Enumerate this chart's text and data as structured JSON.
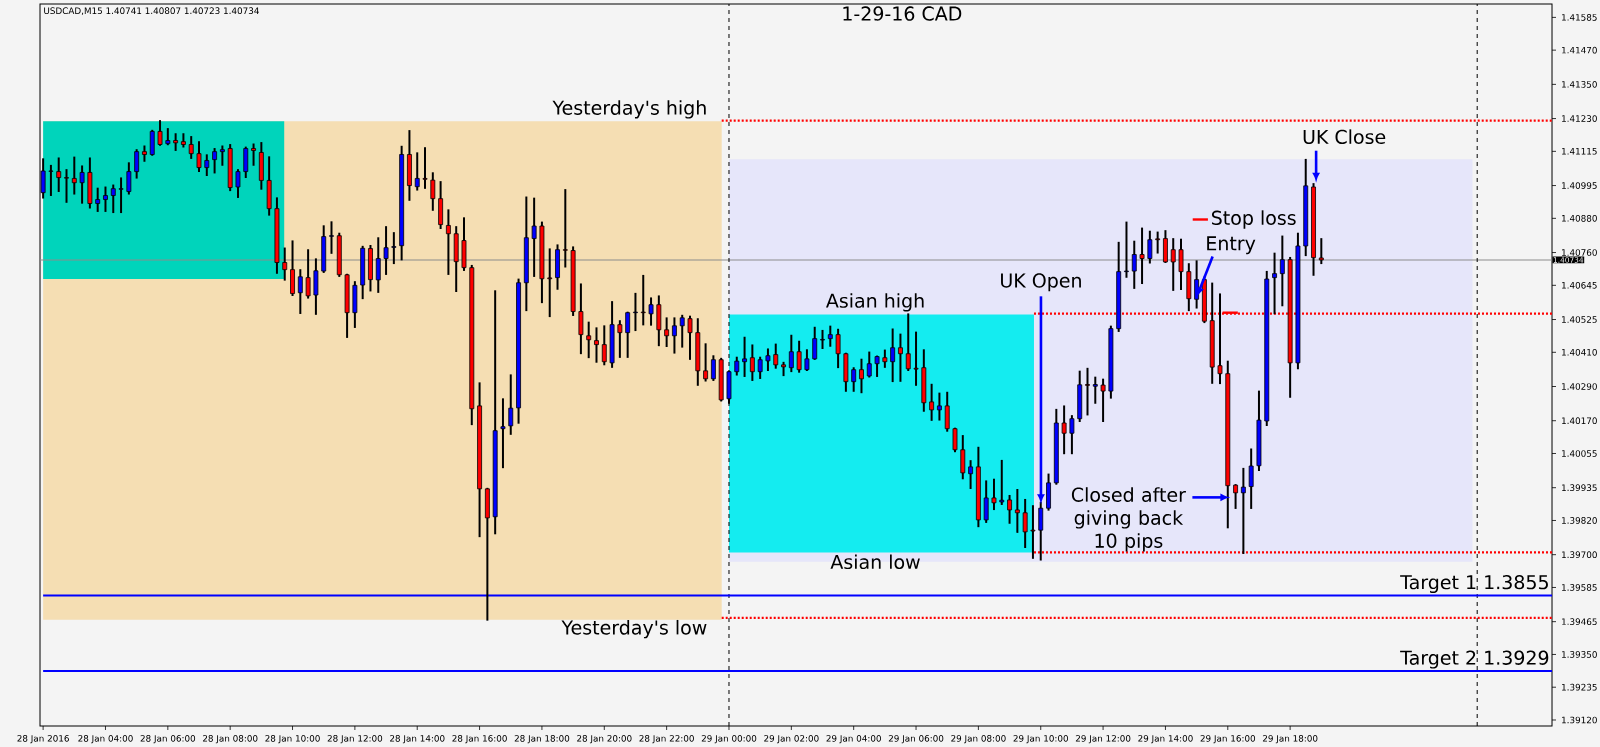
{
  "chart_data": {
    "type": "candlestick",
    "title": "1-29-16  CAD",
    "subtitle": "USDCAD,M15 1.40741 1.40807 1.40723 1.40734",
    "series": [
      {
        "type": "area",
        "x": [
          "2016-01-28T02:00",
          "2016-01-28T23:46"
        ],
        "values": [
          null,
          null
        ],
        "upper": [
          1.41221,
          1.41221
        ],
        "lower": [
          1.39472,
          1.39472
        ],
        "color": "#f5deb3"
      },
      {
        "type": "area",
        "x": [
          "2016-01-28T02:00",
          "2016-01-28T09:44"
        ],
        "values": [
          null,
          null
        ],
        "upper": [
          1.41221,
          1.41221
        ],
        "lower": [
          1.40667,
          1.40667
        ],
        "color": "#00d4bb"
      },
      {
        "type": "area",
        "x": [
          "2016-01-29T00:00",
          "2016-01-29T23:51"
        ],
        "values": [
          null,
          null
        ],
        "upper": [
          1.41087,
          1.41087
        ],
        "lower": [
          1.39675,
          1.39675
        ],
        "color": "#e6e6fa"
      },
      {
        "type": "area",
        "x": [
          "2016-01-29T00:00",
          "2016-01-29T09:47"
        ],
        "values": [
          null,
          null
        ],
        "upper": [
          1.40543,
          1.40543
        ],
        "lower": [
          1.39708,
          1.39708
        ],
        "color": "#14ecf0"
      },
      {
        "type": "line",
        "x": [
          "2016-01-28T23:46",
          "2016-01-30T02:24"
        ],
        "values": [
          1.41223,
          1.41223
        ],
        "color": "#ff0000",
        "line_style": "dotted"
      },
      {
        "type": "line",
        "x": [
          "2016-01-28T23:46",
          "2016-01-30T02:24"
        ],
        "values": [
          1.39478,
          1.39478
        ],
        "color": "#ff0000",
        "line_style": "dotted"
      },
      {
        "type": "line",
        "x": [
          "2016-01-29T09:47",
          "2016-01-30T02:24"
        ],
        "values": [
          1.40546,
          1.40546
        ],
        "color": "#ff0000",
        "line_style": "dotted"
      },
      {
        "type": "line",
        "x": [
          "2016-01-29T09:47",
          "2016-01-30T02:24"
        ],
        "values": [
          1.39708,
          1.39708
        ],
        "color": "#ff0000",
        "line_style": "dotted"
      },
      {
        "type": "line",
        "name": "Target 1  1.3855",
        "x": [
          "2016-01-28T02:00",
          "2016-01-30T02:24"
        ],
        "values": [
          1.39557,
          1.39557
        ],
        "color": "#0000ff",
        "line_style": "solid"
      },
      {
        "type": "line",
        "name": "Target 2  1.3929",
        "x": [
          "2016-01-28T02:00",
          "2016-01-30T02:24"
        ],
        "values": [
          1.39292,
          1.39292
        ],
        "color": "#0000ff",
        "line_style": "solid"
      },
      {
        "x": [
          "2016-01-28T02:00",
          "2016-01-28T02:15",
          "2016-01-28T02:30",
          "2016-01-28T02:45",
          "2016-01-28T03:00",
          "2016-01-28T03:15",
          "2016-01-28T03:30",
          "2016-01-28T03:45",
          "2016-01-28T04:00",
          "2016-01-28T04:15",
          "2016-01-28T04:30",
          "2016-01-28T04:45",
          "2016-01-28T05:00",
          "2016-01-28T05:15",
          "2016-01-28T05:30",
          "2016-01-28T05:45",
          "2016-01-28T06:00",
          "2016-01-28T06:15",
          "2016-01-28T06:30",
          "2016-01-28T06:45",
          "2016-01-28T07:00",
          "2016-01-28T07:15",
          "2016-01-28T07:30",
          "2016-01-28T07:45",
          "2016-01-28T08:00",
          "2016-01-28T08:15",
          "2016-01-28T08:30",
          "2016-01-28T08:45",
          "2016-01-28T09:00",
          "2016-01-28T09:15",
          "2016-01-28T09:30",
          "2016-01-28T09:45",
          "2016-01-28T10:00",
          "2016-01-28T10:15",
          "2016-01-28T10:30",
          "2016-01-28T10:45",
          "2016-01-28T11:00",
          "2016-01-28T11:15",
          "2016-01-28T11:30",
          "2016-01-28T11:45",
          "2016-01-28T12:00",
          "2016-01-28T12:15",
          "2016-01-28T12:30",
          "2016-01-28T12:45",
          "2016-01-28T13:00",
          "2016-01-28T13:15",
          "2016-01-28T13:30",
          "2016-01-28T13:45",
          "2016-01-28T14:00",
          "2016-01-28T14:15",
          "2016-01-28T14:30",
          "2016-01-28T14:45",
          "2016-01-28T15:00",
          "2016-01-28T15:15",
          "2016-01-28T15:30",
          "2016-01-28T15:45",
          "2016-01-28T16:00",
          "2016-01-28T16:15",
          "2016-01-28T16:30",
          "2016-01-28T16:45",
          "2016-01-28T17:00",
          "2016-01-28T17:15",
          "2016-01-28T17:30",
          "2016-01-28T17:45",
          "2016-01-28T18:00",
          "2016-01-28T18:15",
          "2016-01-28T18:30",
          "2016-01-28T18:45",
          "2016-01-28T19:00",
          "2016-01-28T19:15",
          "2016-01-28T19:30",
          "2016-01-28T19:45",
          "2016-01-28T20:00",
          "2016-01-28T20:15",
          "2016-01-28T20:30",
          "2016-01-28T20:45",
          "2016-01-28T21:00",
          "2016-01-28T21:15",
          "2016-01-28T21:30",
          "2016-01-28T21:45",
          "2016-01-28T22:00",
          "2016-01-28T22:15",
          "2016-01-28T22:30",
          "2016-01-28T22:45",
          "2016-01-28T23:00",
          "2016-01-28T23:15",
          "2016-01-28T23:30",
          "2016-01-28T23:45",
          "2016-01-29T00:00",
          "2016-01-29T00:15",
          "2016-01-29T00:30",
          "2016-01-29T00:45",
          "2016-01-29T01:00",
          "2016-01-29T01:15",
          "2016-01-29T01:30",
          "2016-01-29T01:45",
          "2016-01-29T02:00",
          "2016-01-29T02:15",
          "2016-01-29T02:30",
          "2016-01-29T02:45",
          "2016-01-29T03:00",
          "2016-01-29T03:15",
          "2016-01-29T03:30",
          "2016-01-29T03:45",
          "2016-01-29T04:00",
          "2016-01-29T04:15",
          "2016-01-29T04:30",
          "2016-01-29T04:45",
          "2016-01-29T05:00",
          "2016-01-29T05:15",
          "2016-01-29T05:30",
          "2016-01-29T05:45",
          "2016-01-29T06:00",
          "2016-01-29T06:15",
          "2016-01-29T06:30",
          "2016-01-29T06:45",
          "2016-01-29T07:00",
          "2016-01-29T07:15",
          "2016-01-29T07:30",
          "2016-01-29T07:45",
          "2016-01-29T08:00",
          "2016-01-29T08:15",
          "2016-01-29T08:30",
          "2016-01-29T08:45",
          "2016-01-29T09:00",
          "2016-01-29T09:15",
          "2016-01-29T09:30",
          "2016-01-29T09:45",
          "2016-01-29T10:00",
          "2016-01-29T10:15",
          "2016-01-29T10:30",
          "2016-01-29T10:45",
          "2016-01-29T11:00",
          "2016-01-29T11:15",
          "2016-01-29T11:30",
          "2016-01-29T11:45",
          "2016-01-29T12:00",
          "2016-01-29T12:15",
          "2016-01-29T12:30",
          "2016-01-29T12:45",
          "2016-01-29T13:00",
          "2016-01-29T13:15",
          "2016-01-29T13:30",
          "2016-01-29T13:45",
          "2016-01-29T14:00",
          "2016-01-29T14:15",
          "2016-01-29T14:30",
          "2016-01-29T14:45",
          "2016-01-29T15:00",
          "2016-01-29T15:15",
          "2016-01-29T15:30",
          "2016-01-29T15:45",
          "2016-01-29T16:00",
          "2016-01-29T16:15",
          "2016-01-29T16:30",
          "2016-01-29T16:45",
          "2016-01-29T17:00",
          "2016-01-29T17:15",
          "2016-01-29T17:30",
          "2016-01-29T17:45",
          "2016-01-29T18:00",
          "2016-01-29T18:15",
          "2016-01-29T18:30",
          "2016-01-29T18:45",
          "2016-01-29T19:00"
        ],
        "ohlc": [
          [
            1.4097,
            1.41087,
            1.40953,
            1.41046
          ],
          [
            1.41045,
            1.41064,
            1.40962,
            1.41046
          ],
          [
            1.41044,
            1.4109,
            1.40976,
            1.41023
          ],
          [
            1.41023,
            1.41049,
            1.40938,
            1.41021
          ],
          [
            1.4102,
            1.41093,
            1.40967,
            1.41005
          ],
          [
            1.41005,
            1.41062,
            1.40935,
            1.41041
          ],
          [
            1.41041,
            1.4109,
            1.40918,
            1.40932
          ],
          [
            1.40932,
            1.40984,
            1.40906,
            1.40946
          ],
          [
            1.40946,
            1.40988,
            1.40906,
            1.4096
          ],
          [
            1.4096,
            1.40995,
            1.40902,
            1.40984
          ],
          [
            1.40982,
            1.4102,
            1.40902,
            1.40984
          ],
          [
            1.40974,
            1.41073,
            1.40967,
            1.41044
          ],
          [
            1.41044,
            1.41119,
            1.41023,
            1.41114
          ],
          [
            1.41114,
            1.41132,
            1.41082,
            1.41104
          ],
          [
            1.41104,
            1.41187,
            1.41103,
            1.41185
          ],
          [
            1.41185,
            1.41221,
            1.41138,
            1.41139
          ],
          [
            1.41142,
            1.41193,
            1.4114,
            1.41153
          ],
          [
            1.41153,
            1.41175,
            1.4112,
            1.41145
          ],
          [
            1.41149,
            1.41175,
            1.41132,
            1.41139
          ],
          [
            1.41139,
            1.41165,
            1.41092,
            1.41107
          ],
          [
            1.41107,
            1.41147,
            1.41046,
            1.41058
          ],
          [
            1.41058,
            1.41101,
            1.41032,
            1.41083
          ],
          [
            1.41086,
            1.41123,
            1.41041,
            1.41114
          ],
          [
            1.41114,
            1.41132,
            1.41068,
            1.41121
          ],
          [
            1.41125,
            1.41137,
            1.40979,
            1.40988
          ],
          [
            1.4099,
            1.41049,
            1.40955,
            1.41044
          ],
          [
            1.41044,
            1.41128,
            1.41025,
            1.41125
          ],
          [
            1.41125,
            1.41139,
            1.41068,
            1.41118
          ],
          [
            1.41111,
            1.41144,
            1.40984,
            1.41013
          ],
          [
            1.41013,
            1.41094,
            1.40893,
            1.40914
          ],
          [
            1.40914,
            1.4095,
            1.40689,
            1.40725
          ],
          [
            1.40725,
            1.40774,
            1.40665,
            1.407
          ],
          [
            1.407,
            1.40799,
            1.40611,
            1.40616
          ],
          [
            1.40619,
            1.40698,
            1.40548,
            1.40675
          ],
          [
            1.40672,
            1.40768,
            1.40602,
            1.40608
          ],
          [
            1.40611,
            1.40736,
            1.40545,
            1.40696
          ],
          [
            1.40695,
            1.40852,
            1.40692,
            1.40816
          ],
          [
            1.40817,
            1.40866,
            1.40759,
            1.40819
          ],
          [
            1.40819,
            1.40826,
            1.40678,
            1.40682
          ],
          [
            1.40682,
            1.40682,
            1.40464,
            1.40549
          ],
          [
            1.40549,
            1.40656,
            1.40499,
            1.40645
          ],
          [
            1.40646,
            1.4078,
            1.406,
            1.40775
          ],
          [
            1.40774,
            1.40783,
            1.40627,
            1.40665
          ],
          [
            1.40664,
            1.4081,
            1.40622,
            1.40739
          ],
          [
            1.40739,
            1.40849,
            1.40685,
            1.40777
          ],
          [
            1.40778,
            1.40828,
            1.40723,
            1.40781
          ],
          [
            1.40784,
            1.41131,
            1.40736,
            1.41104
          ],
          [
            1.41104,
            1.41186,
            1.40945,
            1.40995
          ],
          [
            1.40991,
            1.41108,
            1.40981,
            1.4102
          ],
          [
            1.4102,
            1.41126,
            1.40987,
            1.41017
          ],
          [
            1.41014,
            1.41038,
            1.4091,
            1.40949
          ],
          [
            1.40949,
            1.41007,
            1.40846,
            1.40858
          ],
          [
            1.40855,
            1.40908,
            1.40685,
            1.40826
          ],
          [
            1.40826,
            1.40849,
            1.40625,
            1.40728
          ],
          [
            1.40802,
            1.4088,
            1.40699,
            1.40707
          ],
          [
            1.40707,
            1.40713,
            1.40158,
            1.40212
          ],
          [
            1.40222,
            1.40301,
            1.39765,
            1.39931
          ],
          [
            1.39931,
            1.39931,
            1.39472,
            1.39829
          ],
          [
            1.39833,
            1.40624,
            1.39775,
            1.40135
          ],
          [
            1.40142,
            1.40245,
            1.40007,
            1.40149
          ],
          [
            1.40152,
            1.40329,
            1.40124,
            1.40214
          ],
          [
            1.40215,
            1.40665,
            1.40163,
            1.40654
          ],
          [
            1.40654,
            1.40953,
            1.40558,
            1.40812
          ],
          [
            1.40809,
            1.40949,
            1.40678,
            1.40853
          ],
          [
            1.40853,
            1.40865,
            1.40586,
            1.40668
          ],
          [
            1.40671,
            1.40771,
            1.40537,
            1.40668
          ],
          [
            1.40672,
            1.40785,
            1.40633,
            1.4077
          ],
          [
            1.4077,
            1.40979,
            1.40711,
            1.40768
          ],
          [
            1.40767,
            1.40778,
            1.40541,
            1.40553
          ],
          [
            1.40553,
            1.40648,
            1.40407,
            1.40472
          ],
          [
            1.40468,
            1.40514,
            1.40393,
            1.40454
          ],
          [
            1.40451,
            1.40494,
            1.40377,
            1.40437
          ],
          [
            1.40437,
            1.40501,
            1.40368,
            1.40377
          ],
          [
            1.40373,
            1.40586,
            1.40359,
            1.40507
          ],
          [
            1.40507,
            1.40519,
            1.40394,
            1.40479
          ],
          [
            1.40479,
            1.40549,
            1.40394,
            1.40549
          ],
          [
            1.40549,
            1.40615,
            1.40488,
            1.40551
          ],
          [
            1.40551,
            1.40678,
            1.40508,
            1.40549
          ],
          [
            1.40545,
            1.40599,
            1.40507,
            1.40577
          ],
          [
            1.40577,
            1.40606,
            1.40435,
            1.40489
          ],
          [
            1.40489,
            1.40529,
            1.40432,
            1.40468
          ],
          [
            1.40468,
            1.40529,
            1.40409,
            1.40503
          ],
          [
            1.40503,
            1.40538,
            1.4043,
            1.40531
          ],
          [
            1.40528,
            1.40535,
            1.40387,
            1.40479
          ],
          [
            1.40479,
            1.40526,
            1.40296,
            1.40345
          ],
          [
            1.40345,
            1.40438,
            1.40311,
            1.40317
          ],
          [
            1.40317,
            1.40396,
            1.40313,
            1.40384
          ],
          [
            1.40384,
            1.40387,
            1.40241,
            1.40243
          ],
          [
            1.40247,
            1.40342,
            1.40233,
            1.40342
          ],
          [
            1.40342,
            1.40391,
            1.40332,
            1.40379
          ],
          [
            1.40377,
            1.40461,
            1.40327,
            1.40387
          ],
          [
            1.40391,
            1.40434,
            1.40313,
            1.40342
          ],
          [
            1.40342,
            1.40391,
            1.4032,
            1.40384
          ],
          [
            1.4038,
            1.4042,
            1.40348,
            1.40398
          ],
          [
            1.40402,
            1.40437,
            1.40356,
            1.40366
          ],
          [
            1.40366,
            1.40373,
            1.4033,
            1.40359
          ],
          [
            1.40356,
            1.40468,
            1.40344,
            1.40412
          ],
          [
            1.40412,
            1.40447,
            1.40342,
            1.40349
          ],
          [
            1.40349,
            1.40417,
            1.40348,
            1.40387
          ],
          [
            1.40387,
            1.40496,
            1.40387,
            1.40458
          ],
          [
            1.40453,
            1.40485,
            1.40425,
            1.40455
          ],
          [
            1.40458,
            1.405,
            1.40433,
            1.40472
          ],
          [
            1.40472,
            1.40489,
            1.40358,
            1.40405
          ],
          [
            1.40405,
            1.40405,
            1.40275,
            1.40307
          ],
          [
            1.40307,
            1.40354,
            1.40275,
            1.40349
          ],
          [
            1.40349,
            1.40384,
            1.4027,
            1.40317
          ],
          [
            1.40327,
            1.40409,
            1.40325,
            1.4037
          ],
          [
            1.4037,
            1.40395,
            1.40327,
            1.40395
          ],
          [
            1.40391,
            1.40416,
            1.40359,
            1.40377
          ],
          [
            1.40377,
            1.4049,
            1.40309,
            1.40426
          ],
          [
            1.40426,
            1.40472,
            1.4031,
            1.40405
          ],
          [
            1.40405,
            1.40543,
            1.40348,
            1.40352
          ],
          [
            1.40354,
            1.40479,
            1.40296,
            1.40351
          ],
          [
            1.40356,
            1.40417,
            1.40205,
            1.40233
          ],
          [
            1.40236,
            1.40296,
            1.40173,
            1.40208
          ],
          [
            1.40208,
            1.40265,
            1.40174,
            1.40222
          ],
          [
            1.40222,
            1.40268,
            1.40135,
            1.40142
          ],
          [
            1.40142,
            1.40142,
            1.40063,
            1.40068
          ],
          [
            1.40068,
            1.40116,
            1.39968,
            1.39987
          ],
          [
            1.39984,
            1.40028,
            1.39934,
            1.40008
          ],
          [
            1.40008,
            1.40075,
            1.398,
            1.39822
          ],
          [
            1.39822,
            1.39957,
            1.39815,
            1.39899
          ],
          [
            1.39899,
            1.39963,
            1.3986,
            1.39882
          ],
          [
            1.39885,
            1.40029,
            1.39878,
            1.39891
          ],
          [
            1.39892,
            1.39906,
            1.39812,
            1.39857
          ],
          [
            1.39857,
            1.39927,
            1.3978,
            1.39847
          ],
          [
            1.39847,
            1.39892,
            1.39727,
            1.3978
          ],
          [
            1.39786,
            1.3987,
            1.39689,
            1.39783
          ],
          [
            1.39786,
            1.39882,
            1.39683,
            1.39863
          ],
          [
            1.39863,
            1.39981,
            1.39858,
            1.39952
          ],
          [
            1.39952,
            1.40208,
            1.39949,
            1.40162
          ],
          [
            1.40162,
            1.4022,
            1.40056,
            1.40126
          ],
          [
            1.40126,
            1.40186,
            1.40056,
            1.40177
          ],
          [
            1.40177,
            1.40342,
            1.40169,
            1.40296
          ],
          [
            1.40297,
            1.40352,
            1.40192,
            1.40294
          ],
          [
            1.40291,
            1.40321,
            1.40233,
            1.40297
          ],
          [
            1.40295,
            1.40314,
            1.40169,
            1.40274
          ],
          [
            1.40274,
            1.405,
            1.40251,
            1.40493
          ],
          [
            1.40493,
            1.40794,
            1.40485,
            1.40693
          ],
          [
            1.40693,
            1.40865,
            1.40675,
            1.40695
          ],
          [
            1.40695,
            1.40798,
            1.40636,
            1.40753
          ],
          [
            1.40753,
            1.40844,
            1.40653,
            1.40739
          ],
          [
            1.40739,
            1.40833,
            1.40725,
            1.40805
          ],
          [
            1.40808,
            1.4083,
            1.4076,
            1.40805
          ],
          [
            1.40809,
            1.40835,
            1.40727,
            1.40727
          ],
          [
            1.4077,
            1.40807,
            1.40629,
            1.40727
          ],
          [
            1.4077,
            1.40805,
            1.40632,
            1.40693
          ],
          [
            1.40693,
            1.40719,
            1.40558,
            1.40598
          ],
          [
            1.40596,
            1.40729,
            1.40567,
            1.40665
          ],
          [
            1.40665,
            1.40672,
            1.40516,
            1.40519
          ],
          [
            1.40521,
            1.40651,
            1.40303,
            1.40358
          ],
          [
            1.40363,
            1.40613,
            1.40302,
            1.40335
          ],
          [
            1.40335,
            1.40377,
            1.39796,
            1.39942
          ],
          [
            1.39944,
            1.39944,
            1.39864,
            1.39917
          ],
          [
            1.39917,
            1.40001,
            1.39706,
            1.39937
          ],
          [
            1.39939,
            1.40069,
            1.39864,
            1.40011
          ],
          [
            1.40012,
            1.40272,
            1.39997,
            1.40172
          ],
          [
            1.40169,
            1.40692,
            1.40155,
            1.40667
          ],
          [
            1.40672,
            1.40756,
            1.40547,
            1.40686
          ],
          [
            1.40686,
            1.40816,
            1.40575,
            1.40735
          ],
          [
            1.40735,
            1.40741,
            1.40254,
            1.40373
          ],
          [
            1.40373,
            1.40826,
            1.40354,
            1.40783
          ],
          [
            1.40783,
            1.41085,
            1.40751,
            1.40994
          ],
          [
            1.4099,
            1.41,
            1.40682,
            1.40742
          ],
          [
            1.40741,
            1.40807,
            1.40723,
            1.40734
          ]
        ]
      }
    ],
    "xlim": [
      "2016-01-28T01:54",
      "2016-01-30T02:24"
    ],
    "ylim": [
      1.39099,
      1.41632
    ],
    "xticks": [
      {
        "value": "2016-01-28T02:00",
        "label": "28 Jan 2016"
      },
      {
        "value": "2016-01-28T04:00",
        "label": "28 Jan 04:00"
      },
      {
        "value": "2016-01-28T06:00",
        "label": "28 Jan 06:00"
      },
      {
        "value": "2016-01-28T08:00",
        "label": "28 Jan 08:00"
      },
      {
        "value": "2016-01-28T10:00",
        "label": "28 Jan 10:00"
      },
      {
        "value": "2016-01-28T12:00",
        "label": "28 Jan 12:00"
      },
      {
        "value": "2016-01-28T14:00",
        "label": "28 Jan 14:00"
      },
      {
        "value": "2016-01-28T16:00",
        "label": "28 Jan 16:00"
      },
      {
        "value": "2016-01-28T18:00",
        "label": "28 Jan 18:00"
      },
      {
        "value": "2016-01-28T20:00",
        "label": "28 Jan 20:00"
      },
      {
        "value": "2016-01-28T22:00",
        "label": "28 Jan 22:00"
      },
      {
        "value": "2016-01-29T00:00",
        "label": "29 Jan 00:00"
      },
      {
        "value": "2016-01-29T02:00",
        "label": "29 Jan 02:00"
      },
      {
        "value": "2016-01-29T04:00",
        "label": "29 Jan 04:00"
      },
      {
        "value": "2016-01-29T06:00",
        "label": "29 Jan 06:00"
      },
      {
        "value": "2016-01-29T08:00",
        "label": "29 Jan 08:00"
      },
      {
        "value": "2016-01-29T10:00",
        "label": "29 Jan 10:00"
      },
      {
        "value": "2016-01-29T12:00",
        "label": "29 Jan 12:00"
      },
      {
        "value": "2016-01-29T14:00",
        "label": "29 Jan 14:00"
      },
      {
        "value": "2016-01-29T16:00",
        "label": "29 Jan 16:00"
      },
      {
        "value": "2016-01-29T18:00",
        "label": "29 Jan 18:00"
      }
    ],
    "yticks": [
      {
        "value": 1.41585,
        "label": "1.41585"
      },
      {
        "value": 1.4147,
        "label": "1.41470"
      },
      {
        "value": 1.4135,
        "label": "1.41350"
      },
      {
        "value": 1.4123,
        "label": "1.41230"
      },
      {
        "value": 1.41115,
        "label": "1.41115"
      },
      {
        "value": 1.40995,
        "label": "1.40995"
      },
      {
        "value": 1.4088,
        "label": "1.40880"
      },
      {
        "value": 1.4076,
        "label": "1.40760"
      },
      {
        "value": 1.40645,
        "label": "1.40645"
      },
      {
        "value": 1.40525,
        "label": "1.40525"
      },
      {
        "value": 1.4041,
        "label": "1.40410"
      },
      {
        "value": 1.4029,
        "label": "1.40290"
      },
      {
        "value": 1.4017,
        "label": "1.40170"
      },
      {
        "value": 1.40055,
        "label": "1.40055"
      },
      {
        "value": 1.39935,
        "label": "1.39935"
      },
      {
        "value": 1.3982,
        "label": "1.39820"
      },
      {
        "value": 1.397,
        "label": "1.39700"
      },
      {
        "value": 1.39585,
        "label": "1.39585"
      },
      {
        "value": 1.39465,
        "label": "1.39465"
      },
      {
        "value": 1.3935,
        "label": "1.39350"
      },
      {
        "value": 1.39235,
        "label": "1.39235"
      },
      {
        "value": 1.3912,
        "label": "1.39120"
      }
    ],
    "ref_lines": [
      {
        "axis": "y",
        "value": 1.40734,
        "color": "#8c8c8c",
        "line_style": "solid",
        "label": "1.40734"
      },
      {
        "axis": "x",
        "value": "2016-01-29T00:00",
        "color": "#000000",
        "line_style": "dashed"
      },
      {
        "axis": "x",
        "value": "2016-01-30T00:00",
        "color": "#000000",
        "line_style": "dashed"
      }
    ],
    "annotations": [
      {
        "text": "Yesterday's high",
        "x": "2016-01-28T23:46",
        "y": 1.41223
      },
      {
        "text": "Yesterday's low",
        "x": "2016-01-28T23:46",
        "y": 1.39478
      },
      {
        "text": "Asian high",
        "x": "2016-01-29T04:42",
        "y": 1.40546
      },
      {
        "text": "Asian low",
        "x": "2016-01-29T04:42",
        "y": 1.39708
      },
      "UK Open",
      "Stop loss",
      {
        "text": "Entry",
        "x": "2016-01-29T15:00",
        "y": 1.40603
      },
      {
        "text": "Closed after giving back 10 pips",
        "x": "2016-01-29T16:05",
        "y": 1.39901
      },
      {
        "text": "UK Close",
        "x": "2016-01-29T18:50",
        "y": 1.41005
      }
    ]
  }
}
